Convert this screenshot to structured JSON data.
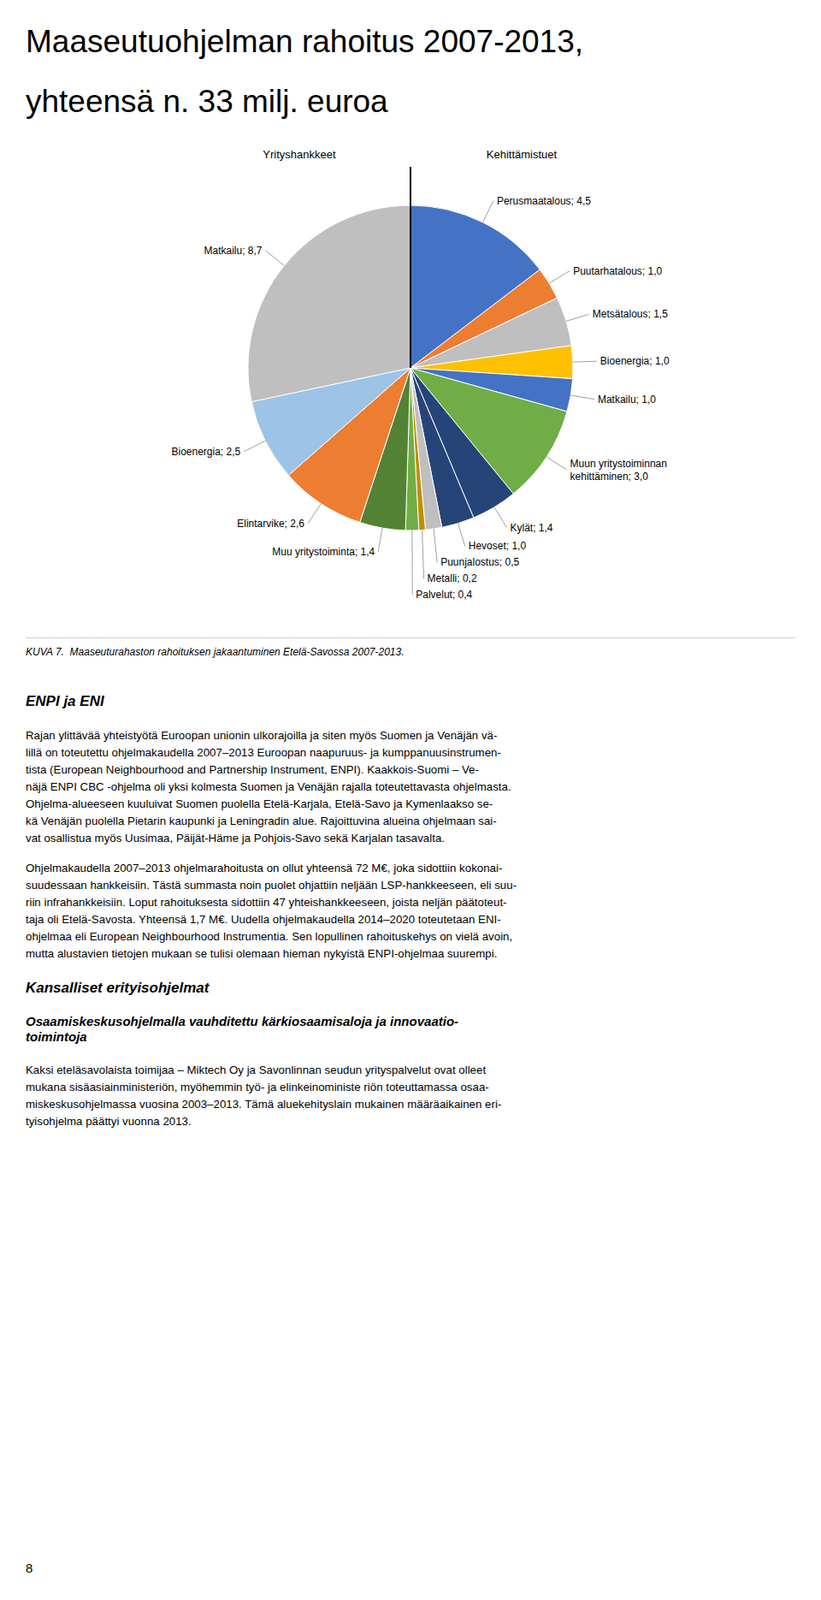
{
  "chart_data": {
    "type": "pie",
    "title": [
      "Maaseutuohjelman rahoitus 2007-2013,",
      "yhteensä n. 33 milj. euroa"
    ],
    "categories": [
      "Perusmaatalous; 4,5",
      "Puutarhatalous; 1,0",
      "Metsätalous; 1,5",
      "Bioenergia; 1,0",
      "Matkailu; 1,0",
      "Muun yritystoiminnan\nkehittäminen; 3,0",
      "Kylät; 1,4",
      "Hevoset; 1,0",
      "Puunjalostus; 0,5",
      "Metalli; 0,2",
      "Palvelut; 0,4",
      "Muu yritystoiminta; 1,4",
      "Elintarvike; 2,6",
      "Bioenergia; 2,5",
      "Matkailu; 8,7"
    ],
    "values": [
      4.5,
      1.0,
      1.5,
      1.0,
      1.0,
      3.0,
      1.4,
      1.0,
      0.5,
      0.2,
      0.4,
      1.4,
      2.6,
      2.5,
      8.7
    ],
    "colors": [
      "#4472C4",
      "#ED7D31",
      "#BFBFBF",
      "#FFC000",
      "#4472C4",
      "#70AD47",
      "#264478",
      "#264478",
      "#BFBFBF",
      "#BF8F00",
      "#70AD47",
      "#548235",
      "#ED7D31",
      "#9DC3E6",
      "#BFBFBF"
    ],
    "annotations": {
      "group_left": "Yrityshankkeet",
      "group_right": "Kehittämistuet",
      "caption": "KUVA 7.  Maaseuturahaston rahoituksen jakaantuminen Etelä-Savossa 2007-2013.",
      "text_blocks": [
        {
          "heading": "ENPI ja ENI",
          "body": [
            "Rajan ylittävää yhteistyötä Euroopan unionin ulkorajoilla ja siten myös Suomen ja Venäjän vä-\nlillä on toteutettu ohjelmakaudella 2007–2013 Euroopan naapuruus- ja kumppanuusinstrumen-\ntista (European Neighbourhood and Partnership Instrument, ENPI). Kaakkois-Suomi – Ve-\nnäjä ENPI CBC -ohjelma oli yksi kolmesta Suomen ja Venäjän rajalla toteutettavasta ohjelmasta.\nOhjelma-alueeseen kuuluivat Suomen puolella Etelä-Karjala, Etelä-Savo ja Kymenlaakso se-\nkä Venäjän puolella Pietarin kaupunki ja Leningradin alue. Rajoittuvina alueina ohjelmaan sai-\nvat osallistua myös Uusimaa, Päijät-Häme ja Pohjois-Savo sekä Karjalan tasavalta.",
            "Ohjelmakaudella 2007–2013 ohjelmarahoitusta on ollut yhteensä 72 M€, joka sidottiin kokonai-\nsuudessaan hankkeisiin. Tästä summasta noin puolet ohjattiin neljään LSP-hankkeeseen, eli suu-\nriin infrahankkeisiin. Loput rahoituksesta sidottiin 47 yhteishankkeeseen, joista neljän päätoteut-\ntaja oli Etelä-Savosta. Yhteensä 1,7 M€. Uudella ohjelmakaudella 2014–2020 toteutetaan ENI-\nohjelmaa eli European Neighbourhood Instrumentia. Sen lopullinen rahoituskehys on vielä avoin,\nmutta alustavien tietojen mukaan se tulisi olemaan hieman nykyistä ENPI-ohjelmaa suurempi."
          ]
        },
        {
          "heading": "Kansalliset erityisohjelmat",
          "body": []
        },
        {
          "heading": "Osaamiskeskusohjelmalla vauhditettu kärkiosaamisaloja ja innovaatio-\ntoimintoja",
          "body": [
            "Kaksi eteläsavolaista toimijaa – Miktech Oy ja Savonlinnan seudun yrityspalvelut ovat olleet\nmukana sisäasiainministeriön, myöhemmin työ- ja elinkeinoministe riön toteuttamassa osaa-\nmiskeskusohjelmassa vuosina 2003–2013. Tämä aluekehityslain mukainen määräaikainen eri-\ntyisohjelma päättyi vuonna 2013."
          ]
        }
      ],
      "page_number": "8"
    }
  }
}
